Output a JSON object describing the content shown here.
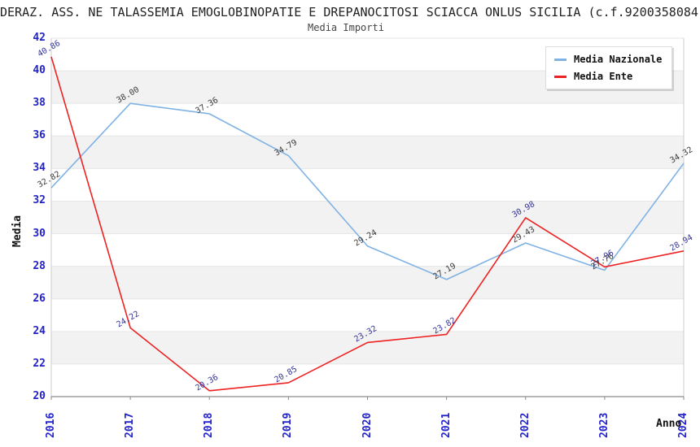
{
  "header": {
    "title": "DERAZ. ASS. NE TALASSEMIA EMOGLOBINOPATIE E DREPANOCITOSI SCIACCA ONLUS SICILIA (c.f.9200358084",
    "subtitle": "Media Importi"
  },
  "chart_data": {
    "type": "line",
    "title": "Media Importi",
    "categories": [
      "2016",
      "2017",
      "2018",
      "2019",
      "2020",
      "2021",
      "2022",
      "2023",
      "2024"
    ],
    "series": [
      {
        "name": "Media Nazionale",
        "color": "#7fb2e5",
        "label_color": "#3c3c3c",
        "values": [
          32.82,
          38.0,
          37.36,
          34.79,
          29.24,
          27.19,
          29.43,
          27.76,
          34.32
        ]
      },
      {
        "name": "Media Ente",
        "color": "#ee2222",
        "label_color": "#333399",
        "values": [
          40.86,
          24.22,
          20.36,
          20.85,
          23.32,
          23.82,
          30.98,
          27.96,
          28.94
        ]
      }
    ],
    "xlabel": "Anno",
    "ylabel": "Media",
    "ylim": [
      20,
      42
    ],
    "ytick_step": 2,
    "grid": "horizontal, alternating shaded bands",
    "legend_position": "top-right",
    "colors": {
      "tick_label": "#2323cc",
      "band_fill": "#f2f2f2",
      "gridline": "#e6e6e6",
      "axis_line": "#8a8a8a",
      "spine": "#cccccc"
    }
  }
}
